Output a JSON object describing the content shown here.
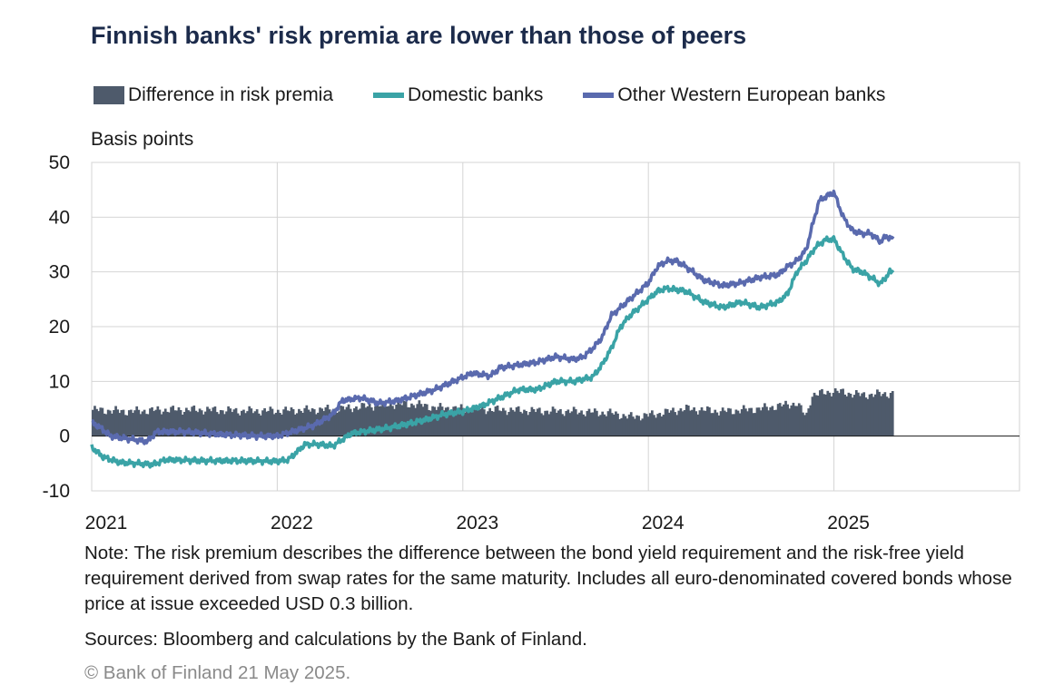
{
  "chart_data": {
    "type": "bar+line",
    "title": "Finnish banks' risk premia are lower than those of peers",
    "ylabel": "Basis points",
    "ylim": [
      -10,
      50
    ],
    "yticks": [
      -10,
      0,
      10,
      20,
      30,
      40,
      50
    ],
    "xlim": [
      2021.0,
      2026.0
    ],
    "xticks": [
      "2021",
      "2022",
      "2023",
      "2024",
      "2025"
    ],
    "grid": true,
    "legend_placement": "top",
    "series": [
      {
        "name": "Difference in risk premia",
        "type": "bar",
        "color": "#4e5a6b",
        "points": [
          [
            2021.0,
            4.8
          ],
          [
            2021.2,
            4.5
          ],
          [
            2021.4,
            4.8
          ],
          [
            2021.6,
            4.8
          ],
          [
            2021.8,
            4.6
          ],
          [
            2022.0,
            4.6
          ],
          [
            2022.2,
            4.8
          ],
          [
            2022.35,
            5.0
          ],
          [
            2022.5,
            5.5
          ],
          [
            2022.6,
            5.8
          ],
          [
            2022.75,
            5.8
          ],
          [
            2022.85,
            5.2
          ],
          [
            2023.0,
            5.0
          ],
          [
            2023.2,
            4.8
          ],
          [
            2023.4,
            4.6
          ],
          [
            2023.6,
            4.5
          ],
          [
            2023.8,
            4.2
          ],
          [
            2023.9,
            3.5
          ],
          [
            2024.0,
            3.8
          ],
          [
            2024.2,
            5.0
          ],
          [
            2024.4,
            4.5
          ],
          [
            2024.6,
            5.0
          ],
          [
            2024.8,
            6.0
          ],
          [
            2024.85,
            3.5
          ],
          [
            2024.88,
            7.5
          ],
          [
            2025.0,
            8.2
          ],
          [
            2025.15,
            7.5
          ],
          [
            2025.32,
            7.8
          ]
        ]
      },
      {
        "name": "Domestic banks",
        "type": "line",
        "color": "#3aa3a6",
        "points": [
          [
            2021.0,
            -2.0
          ],
          [
            2021.06,
            -3.8
          ],
          [
            2021.15,
            -4.8
          ],
          [
            2021.25,
            -5.0
          ],
          [
            2021.33,
            -5.2
          ],
          [
            2021.4,
            -4.3
          ],
          [
            2021.6,
            -4.5
          ],
          [
            2021.8,
            -4.5
          ],
          [
            2022.0,
            -4.6
          ],
          [
            2022.06,
            -4.3
          ],
          [
            2022.15,
            -1.5
          ],
          [
            2022.22,
            -1.5
          ],
          [
            2022.3,
            -1.8
          ],
          [
            2022.4,
            0.5
          ],
          [
            2022.5,
            1.0
          ],
          [
            2022.6,
            1.5
          ],
          [
            2022.7,
            2.2
          ],
          [
            2022.8,
            3.0
          ],
          [
            2022.9,
            4.0
          ],
          [
            2023.0,
            4.5
          ],
          [
            2023.1,
            5.5
          ],
          [
            2023.2,
            7.0
          ],
          [
            2023.3,
            8.5
          ],
          [
            2023.4,
            8.5
          ],
          [
            2023.5,
            10.0
          ],
          [
            2023.6,
            10.0
          ],
          [
            2023.7,
            10.8
          ],
          [
            2023.75,
            13.0
          ],
          [
            2023.8,
            16.0
          ],
          [
            2023.85,
            20.0
          ],
          [
            2023.9,
            22.0
          ],
          [
            2024.0,
            25.0
          ],
          [
            2024.05,
            26.5
          ],
          [
            2024.1,
            27.0
          ],
          [
            2024.2,
            26.5
          ],
          [
            2024.3,
            24.5
          ],
          [
            2024.4,
            23.5
          ],
          [
            2024.5,
            24.5
          ],
          [
            2024.6,
            23.5
          ],
          [
            2024.7,
            24.5
          ],
          [
            2024.75,
            26.0
          ],
          [
            2024.8,
            30.0
          ],
          [
            2024.85,
            32.0
          ],
          [
            2024.9,
            34.5
          ],
          [
            2024.95,
            35.8
          ],
          [
            2025.0,
            36.0
          ],
          [
            2025.05,
            33.0
          ],
          [
            2025.1,
            30.5
          ],
          [
            2025.15,
            30.0
          ],
          [
            2025.2,
            29.0
          ],
          [
            2025.25,
            27.8
          ],
          [
            2025.28,
            29.0
          ],
          [
            2025.3,
            30.0
          ],
          [
            2025.32,
            30.0
          ]
        ]
      },
      {
        "name": "Other Western European banks",
        "type": "line",
        "color": "#5a6aae",
        "points": [
          [
            2021.0,
            2.5
          ],
          [
            2021.05,
            1.5
          ],
          [
            2021.1,
            0.0
          ],
          [
            2021.2,
            -0.5
          ],
          [
            2021.3,
            -1.0
          ],
          [
            2021.35,
            0.8
          ],
          [
            2021.5,
            0.8
          ],
          [
            2021.7,
            0.3
          ],
          [
            2021.9,
            0.0
          ],
          [
            2022.0,
            0.0
          ],
          [
            2022.1,
            1.0
          ],
          [
            2022.2,
            2.0
          ],
          [
            2022.3,
            4.0
          ],
          [
            2022.35,
            6.5
          ],
          [
            2022.45,
            7.0
          ],
          [
            2022.55,
            6.0
          ],
          [
            2022.65,
            6.5
          ],
          [
            2022.75,
            7.5
          ],
          [
            2022.85,
            8.5
          ],
          [
            2022.95,
            10.0
          ],
          [
            2023.05,
            11.5
          ],
          [
            2023.15,
            11.0
          ],
          [
            2023.2,
            12.5
          ],
          [
            2023.3,
            13.0
          ],
          [
            2023.4,
            13.5
          ],
          [
            2023.5,
            14.5
          ],
          [
            2023.6,
            14.0
          ],
          [
            2023.65,
            14.5
          ],
          [
            2023.7,
            16.0
          ],
          [
            2023.75,
            18.0
          ],
          [
            2023.8,
            22.0
          ],
          [
            2023.9,
            25.0
          ],
          [
            2024.0,
            28.0
          ],
          [
            2024.05,
            31.0
          ],
          [
            2024.1,
            32.0
          ],
          [
            2024.15,
            32.0
          ],
          [
            2024.2,
            31.0
          ],
          [
            2024.3,
            28.5
          ],
          [
            2024.4,
            27.5
          ],
          [
            2024.5,
            28.0
          ],
          [
            2024.6,
            29.0
          ],
          [
            2024.7,
            29.5
          ],
          [
            2024.75,
            31.0
          ],
          [
            2024.8,
            32.0
          ],
          [
            2024.85,
            34.0
          ],
          [
            2024.88,
            38.0
          ],
          [
            2024.92,
            43.0
          ],
          [
            2024.97,
            44.0
          ],
          [
            2025.0,
            44.5
          ],
          [
            2025.05,
            40.0
          ],
          [
            2025.1,
            37.5
          ],
          [
            2025.15,
            37.0
          ],
          [
            2025.2,
            37.0
          ],
          [
            2025.25,
            35.5
          ],
          [
            2025.28,
            36.5
          ],
          [
            2025.32,
            36.0
          ]
        ]
      }
    ]
  },
  "note": "Note: The risk premium describes the difference between the bond yield requirement and the risk-free yield requirement derived from swap rates for the same maturity. Includes all euro-denominated covered bonds whose price at issue exceeded USD 0.3 billion.",
  "sources": "Sources: Bloomberg and calculations by the Bank of Finland.",
  "copyright": "© Bank of Finland 21 May 2025."
}
